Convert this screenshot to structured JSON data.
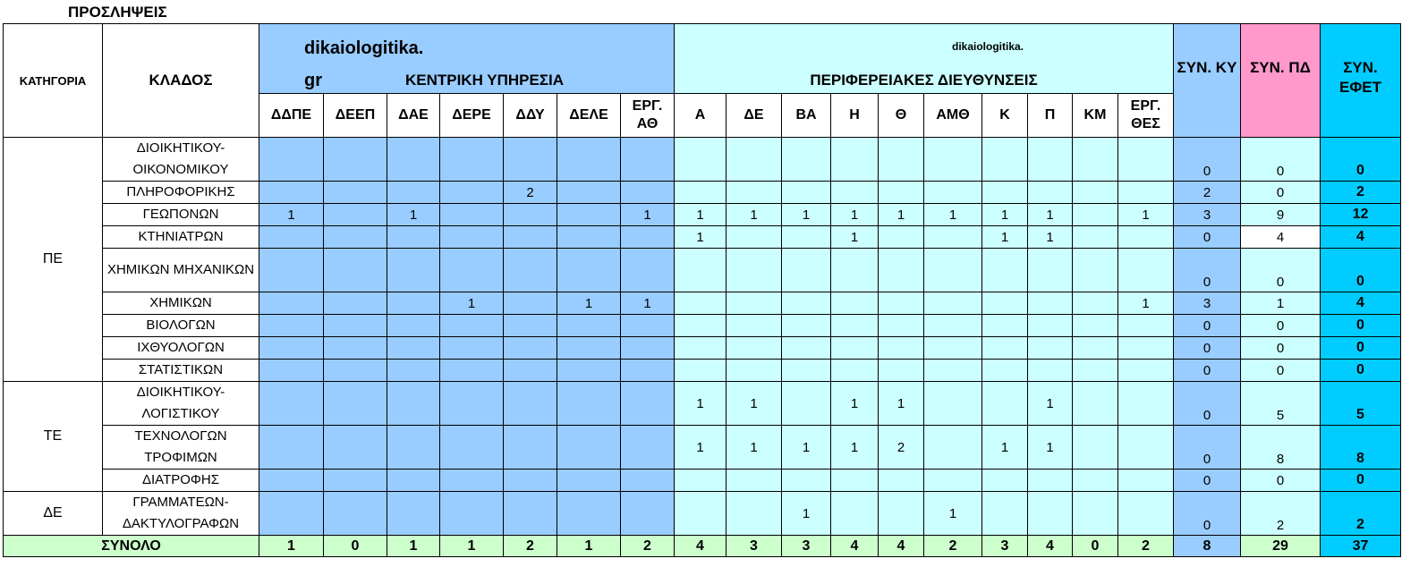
{
  "title": "ΠΡΟΣΛΗΨΕΙΣ",
  "headers": {
    "category": "ΚΑΤΗΓΟΡΙΑ",
    "klados": "ΚΛΑΔΟΣ",
    "central_group": "ΚΕΝΤΡΙΚΗ ΥΠΗΡΕΣΙΑ",
    "central_watermark_1": "dikaiologitika.",
    "central_watermark_2": "gr",
    "regional_group": "ΠΕΡΙΦΕΡΕΙΑΚΕΣ ΔΙΕΥΘΥΝΣΕΙΣ",
    "regional_watermark": "dikaiologitika.",
    "central_cols": [
      "ΔΔΠΕ",
      "ΔΕΕΠ",
      "ΔΑΕ",
      "ΔΕΡΕ",
      "ΔΔΥ",
      "ΔΕΛΕ",
      "ΕΡΓ. ΑΘ"
    ],
    "regional_cols": [
      "Α",
      "ΔΕ",
      "ΒΑ",
      "Η",
      "Θ",
      "ΑΜΘ",
      "Κ",
      "Π",
      "ΚΜ",
      "ΕΡΓ. ΘΕΣ"
    ],
    "sum_ky": "ΣΥΝ. ΚΥ",
    "sum_pd": "ΣΥΝ. ΠΔ",
    "sum_efet": "ΣΥΝ. ΕΦΕΤ"
  },
  "colors": {
    "central": "#99ccff",
    "regional": "#ccffff",
    "sum_ky": "#99ccff",
    "sum_pd": "#ff99cc",
    "sum_efet": "#00ccff",
    "total_row": "#ccffcc"
  },
  "categories": [
    {
      "label": "ΠΕ",
      "rows": [
        {
          "klados": "ΔΙΟΙΚΗΤΙΚΟΥ- ΟΙΚΟΝΟΜΙΚΟΥ",
          "tall": true,
          "values": [
            "",
            "",
            "",
            "",
            "",
            "",
            "",
            "",
            "",
            "",
            "",
            "",
            "",
            "",
            "",
            "",
            ""
          ],
          "sum_ky": "0",
          "sum_pd": "0",
          "sum_efet": "0"
        },
        {
          "klados": "ΠΛΗΡΟΦΟΡΙΚΗΣ",
          "values": [
            "",
            "",
            "",
            "",
            "2",
            "",
            "",
            "",
            "",
            "",
            "",
            "",
            "",
            "",
            "",
            "",
            ""
          ],
          "sum_ky": "2",
          "sum_pd": "0",
          "sum_efet": "2"
        },
        {
          "klados": "ΓΕΩΠΟΝΩΝ",
          "values": [
            "1",
            "",
            "1",
            "",
            "",
            "",
            "1",
            "1",
            "1",
            "1",
            "1",
            "1",
            "1",
            "1",
            "1",
            "",
            "1"
          ],
          "sum_ky": "3",
          "sum_pd": "9",
          "sum_efet": "12"
        },
        {
          "klados": "ΚΤΗΝΙΑΤΡΩΝ",
          "pd_white": true,
          "values": [
            "",
            "",
            "",
            "",
            "",
            "",
            "",
            "1",
            "",
            "",
            "1",
            "",
            "",
            "1",
            "1",
            "",
            ""
          ],
          "sum_ky": "0",
          "sum_pd": "4",
          "sum_efet": "4"
        },
        {
          "klados": "ΧΗΜΙΚΩΝ ΜΗΧΑΝΙΚΩΝ",
          "tall": true,
          "values": [
            "",
            "",
            "",
            "",
            "",
            "",
            "",
            "",
            "",
            "",
            "",
            "",
            "",
            "",
            "",
            "",
            ""
          ],
          "sum_ky": "0",
          "sum_pd": "0",
          "sum_efet": "0"
        },
        {
          "klados": "ΧΗΜΙΚΩΝ",
          "values": [
            "",
            "",
            "",
            "1",
            "",
            "1",
            "1",
            "",
            "",
            "",
            "",
            "",
            "",
            "",
            "",
            "",
            "1"
          ],
          "sum_ky": "3",
          "sum_pd": "1",
          "sum_efet": "4"
        },
        {
          "klados": "ΒΙΟΛΟΓΩΝ",
          "values": [
            "",
            "",
            "",
            "",
            "",
            "",
            "",
            "",
            "",
            "",
            "",
            "",
            "",
            "",
            "",
            "",
            ""
          ],
          "sum_ky": "0",
          "sum_pd": "0",
          "sum_efet": "0"
        },
        {
          "klados": "ΙΧΘΥΟΛΟΓΩΝ",
          "values": [
            "",
            "",
            "",
            "",
            "",
            "",
            "",
            "",
            "",
            "",
            "",
            "",
            "",
            "",
            "",
            "",
            ""
          ],
          "sum_ky": "0",
          "sum_pd": "0",
          "sum_efet": "0"
        },
        {
          "klados": "ΣΤΑΤΙΣΤΙΚΩΝ",
          "values": [
            "",
            "",
            "",
            "",
            "",
            "",
            "",
            "",
            "",
            "",
            "",
            "",
            "",
            "",
            "",
            "",
            ""
          ],
          "sum_ky": "0",
          "sum_pd": "0",
          "sum_efet": "0"
        }
      ]
    },
    {
      "label": "ΤΕ",
      "rows": [
        {
          "klados": "ΔΙΟΙΚΗΤΙΚΟΥ- ΛΟΓΙΣΤΙΚΟΥ",
          "tall": true,
          "values": [
            "",
            "",
            "",
            "",
            "",
            "",
            "",
            "1",
            "1",
            "",
            "1",
            "1",
            "",
            "",
            "1",
            "",
            ""
          ],
          "sum_ky": "0",
          "sum_pd": "5",
          "sum_efet": "5"
        },
        {
          "klados": "ΤΕΧΝΟΛΟΓΩΝ ΤΡΟΦΙΜΩΝ",
          "tall": true,
          "values": [
            "",
            "",
            "",
            "",
            "",
            "",
            "",
            "1",
            "1",
            "1",
            "1",
            "2",
            "",
            "1",
            "1",
            "",
            ""
          ],
          "sum_ky": "0",
          "sum_pd": "8",
          "sum_efet": "8"
        },
        {
          "klados": "ΔΙΑΤΡΟΦΗΣ",
          "values": [
            "",
            "",
            "",
            "",
            "",
            "",
            "",
            "",
            "",
            "",
            "",
            "",
            "",
            "",
            "",
            "",
            ""
          ],
          "sum_ky": "0",
          "sum_pd": "0",
          "sum_efet": "0"
        }
      ]
    },
    {
      "label": "ΔΕ",
      "rows": [
        {
          "klados": "ΓΡΑΜΜΑΤΕΩΝ- ΔΑΚΤΥΛΟΓΡΑΦΩΝ",
          "tall": true,
          "values": [
            "",
            "",
            "",
            "",
            "",
            "",
            "",
            "",
            "",
            "1",
            "",
            "",
            "1",
            "",
            "",
            "",
            ""
          ],
          "sum_ky": "0",
          "sum_pd": "2",
          "sum_efet": "2"
        }
      ]
    }
  ],
  "total": {
    "label": "ΣΥΝΟΛΟ",
    "values": [
      "1",
      "0",
      "1",
      "1",
      "2",
      "1",
      "2",
      "4",
      "3",
      "3",
      "4",
      "4",
      "2",
      "3",
      "4",
      "0",
      "2"
    ],
    "sum_ky": "8",
    "sum_pd": "29",
    "sum_efet": "37"
  }
}
